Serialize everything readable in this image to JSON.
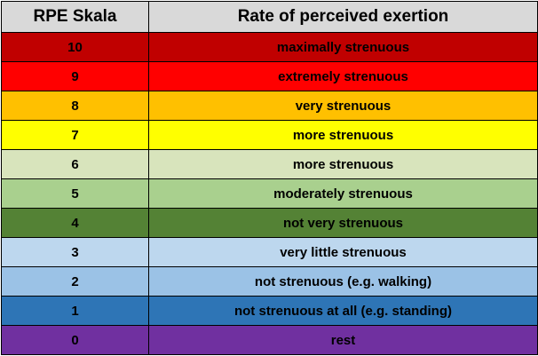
{
  "header": {
    "col1": "RPE Skala",
    "col2": "Rate of perceived exertion"
  },
  "rows": [
    {
      "value": "10",
      "label": "maximally strenuous",
      "color": "#c00000"
    },
    {
      "value": "9",
      "label": "extremely strenuous",
      "color": "#ff0000"
    },
    {
      "value": "8",
      "label": "very strenuous",
      "color": "#ffc000"
    },
    {
      "value": "7",
      "label": "more strenuous",
      "color": "#ffff00"
    },
    {
      "value": "6",
      "label": "more strenuous",
      "color": "#d8e4bc"
    },
    {
      "value": "5",
      "label": "moderately strenuous",
      "color": "#a9d08e"
    },
    {
      "value": "4",
      "label": "not very strenuous",
      "color": "#548235"
    },
    {
      "value": "3",
      "label": "very little strenuous",
      "color": "#bdd7ee"
    },
    {
      "value": "2",
      "label": "not strenuous (e.g. walking)",
      "color": "#9bc2e6"
    },
    {
      "value": "1",
      "label": "not strenuous at all (e.g. standing)",
      "color": "#2e75b6"
    },
    {
      "value": "0",
      "label": "rest",
      "color": "#7030a0"
    }
  ]
}
